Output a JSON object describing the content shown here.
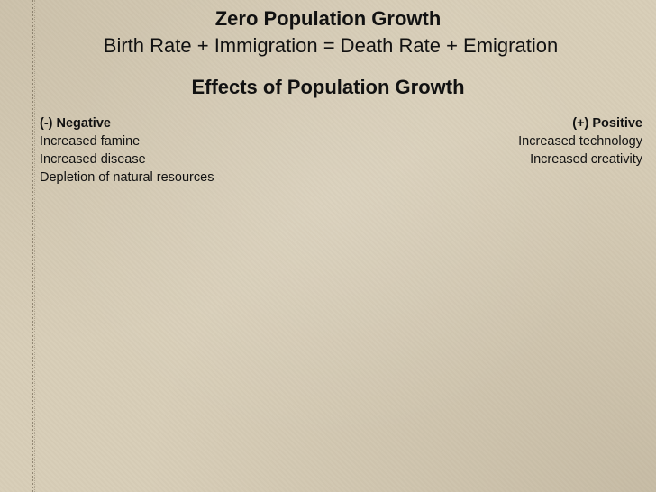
{
  "slide": {
    "title": "Zero Population Growth",
    "subtitle": "Birth Rate + Immigration = Death Rate + Emigration",
    "heading": "Effects of Population Growth",
    "negative": {
      "label": "(-) Negative",
      "items": [
        "Increased famine",
        "Increased disease",
        "Depletion of natural resources"
      ]
    },
    "positive": {
      "label": "(+) Positive",
      "items": [
        "Increased technology",
        "Increased creativity"
      ]
    }
  },
  "colors": {
    "background": "#d8ceb8",
    "text": "#111111"
  }
}
